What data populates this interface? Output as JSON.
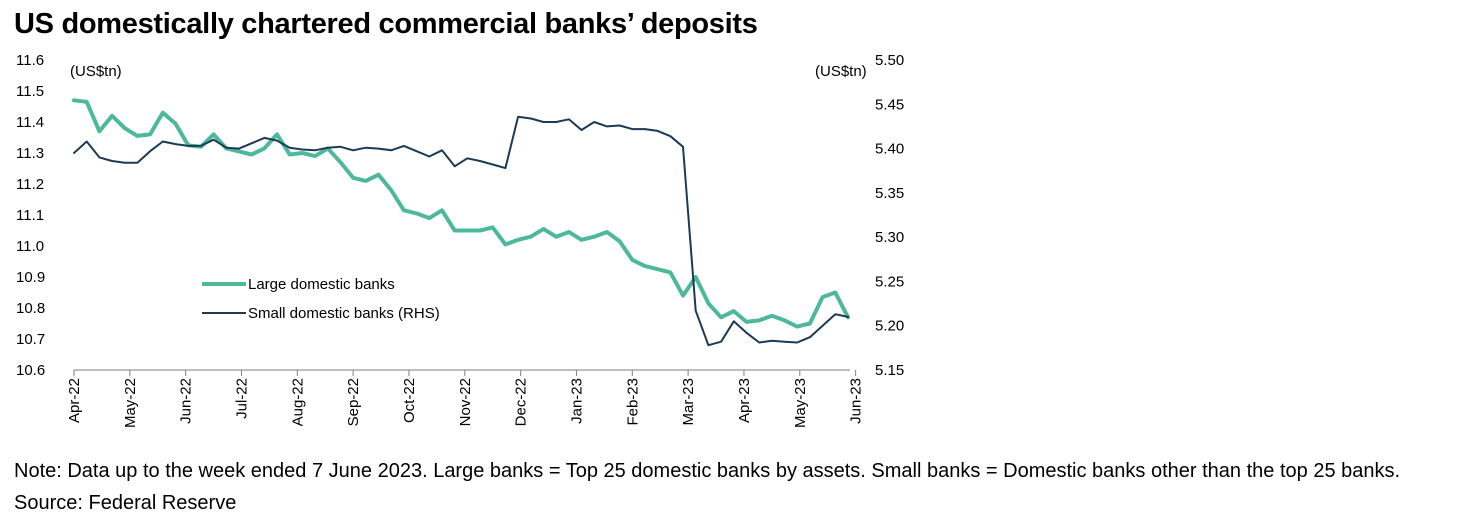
{
  "title": "US domestically chartered commercial banks’ deposits",
  "note": "Note: Data up to the week ended 7 June 2023. Large banks = Top 25 domestic banks by assets. Small banks = Domestic banks other than the top 25 banks. Source: Federal Reserve",
  "chart_data": {
    "type": "line",
    "title": "US domestically chartered commercial banks’ deposits",
    "left_axis": {
      "unit": "(US$tn)",
      "ylim": [
        10.6,
        11.6
      ],
      "ticks": [
        "11.6",
        "11.5",
        "11.4",
        "11.3",
        "11.2",
        "11.1",
        "11.0",
        "10.9",
        "10.8",
        "10.7",
        "10.6"
      ]
    },
    "right_axis": {
      "unit": "(US$tn)",
      "ylim": [
        5.15,
        5.5
      ],
      "ticks": [
        "5.50",
        "5.45",
        "5.40",
        "5.35",
        "5.30",
        "5.25",
        "5.20",
        "5.15"
      ]
    },
    "x_ticks": [
      {
        "label": "Apr-22",
        "week": 0
      },
      {
        "label": "May-22",
        "week": 4.4
      },
      {
        "label": "Jun-22",
        "week": 8.8
      },
      {
        "label": "Jul-22",
        "week": 13.2
      },
      {
        "label": "Aug-22",
        "week": 17.6
      },
      {
        "label": "Sep-22",
        "week": 22
      },
      {
        "label": "Oct-22",
        "week": 26.4
      },
      {
        "label": "Nov-22",
        "week": 30.8
      },
      {
        "label": "Dec-22",
        "week": 35.2
      },
      {
        "label": "Jan-23",
        "week": 39.6
      },
      {
        "label": "Feb-23",
        "week": 44
      },
      {
        "label": "Mar-23",
        "week": 48.4
      },
      {
        "label": "Apr-23",
        "week": 52.8
      },
      {
        "label": "May-23",
        "week": 57.2
      },
      {
        "label": "Jun-23",
        "week": 61.6
      }
    ],
    "legend_position": "center-left",
    "series": [
      {
        "name": "Large domestic banks",
        "axis": "left",
        "color": "#4DB89A",
        "values": [
          11.47,
          11.465,
          11.37,
          11.42,
          11.38,
          11.355,
          11.36,
          11.43,
          11.395,
          11.325,
          11.32,
          11.36,
          11.315,
          11.305,
          11.295,
          11.315,
          11.36,
          11.295,
          11.3,
          11.29,
          11.315,
          11.27,
          11.22,
          11.21,
          11.23,
          11.18,
          11.115,
          11.105,
          11.09,
          11.115,
          11.05,
          11.05,
          11.05,
          11.06,
          11.005,
          11.02,
          11.03,
          11.055,
          11.03,
          11.045,
          11.02,
          11.03,
          11.045,
          11.015,
          10.955,
          10.935,
          10.925,
          10.915,
          10.84,
          10.9,
          10.815,
          10.77,
          10.79,
          10.755,
          10.76,
          10.775,
          10.76,
          10.74,
          10.75,
          10.835,
          10.85,
          10.77
        ]
      },
      {
        "name": "Small domestic banks (RHS)",
        "axis": "right",
        "color": "#1B3A57",
        "values": [
          5.395,
          5.408,
          5.39,
          5.386,
          5.384,
          5.384,
          5.397,
          5.408,
          5.405,
          5.403,
          5.403,
          5.41,
          5.401,
          5.4,
          5.406,
          5.412,
          5.409,
          5.401,
          5.399,
          5.398,
          5.401,
          5.402,
          5.398,
          5.401,
          5.4,
          5.398,
          5.403,
          5.397,
          5.391,
          5.398,
          5.38,
          5.389,
          5.386,
          5.382,
          5.378,
          5.436,
          5.434,
          5.43,
          5.43,
          5.433,
          5.421,
          5.43,
          5.425,
          5.426,
          5.422,
          5.422,
          5.42,
          5.414,
          5.402,
          5.217,
          5.178,
          5.182,
          5.205,
          5.192,
          5.181,
          5.183,
          5.182,
          5.181,
          5.187,
          5.2,
          5.213,
          5.21
        ]
      }
    ]
  }
}
